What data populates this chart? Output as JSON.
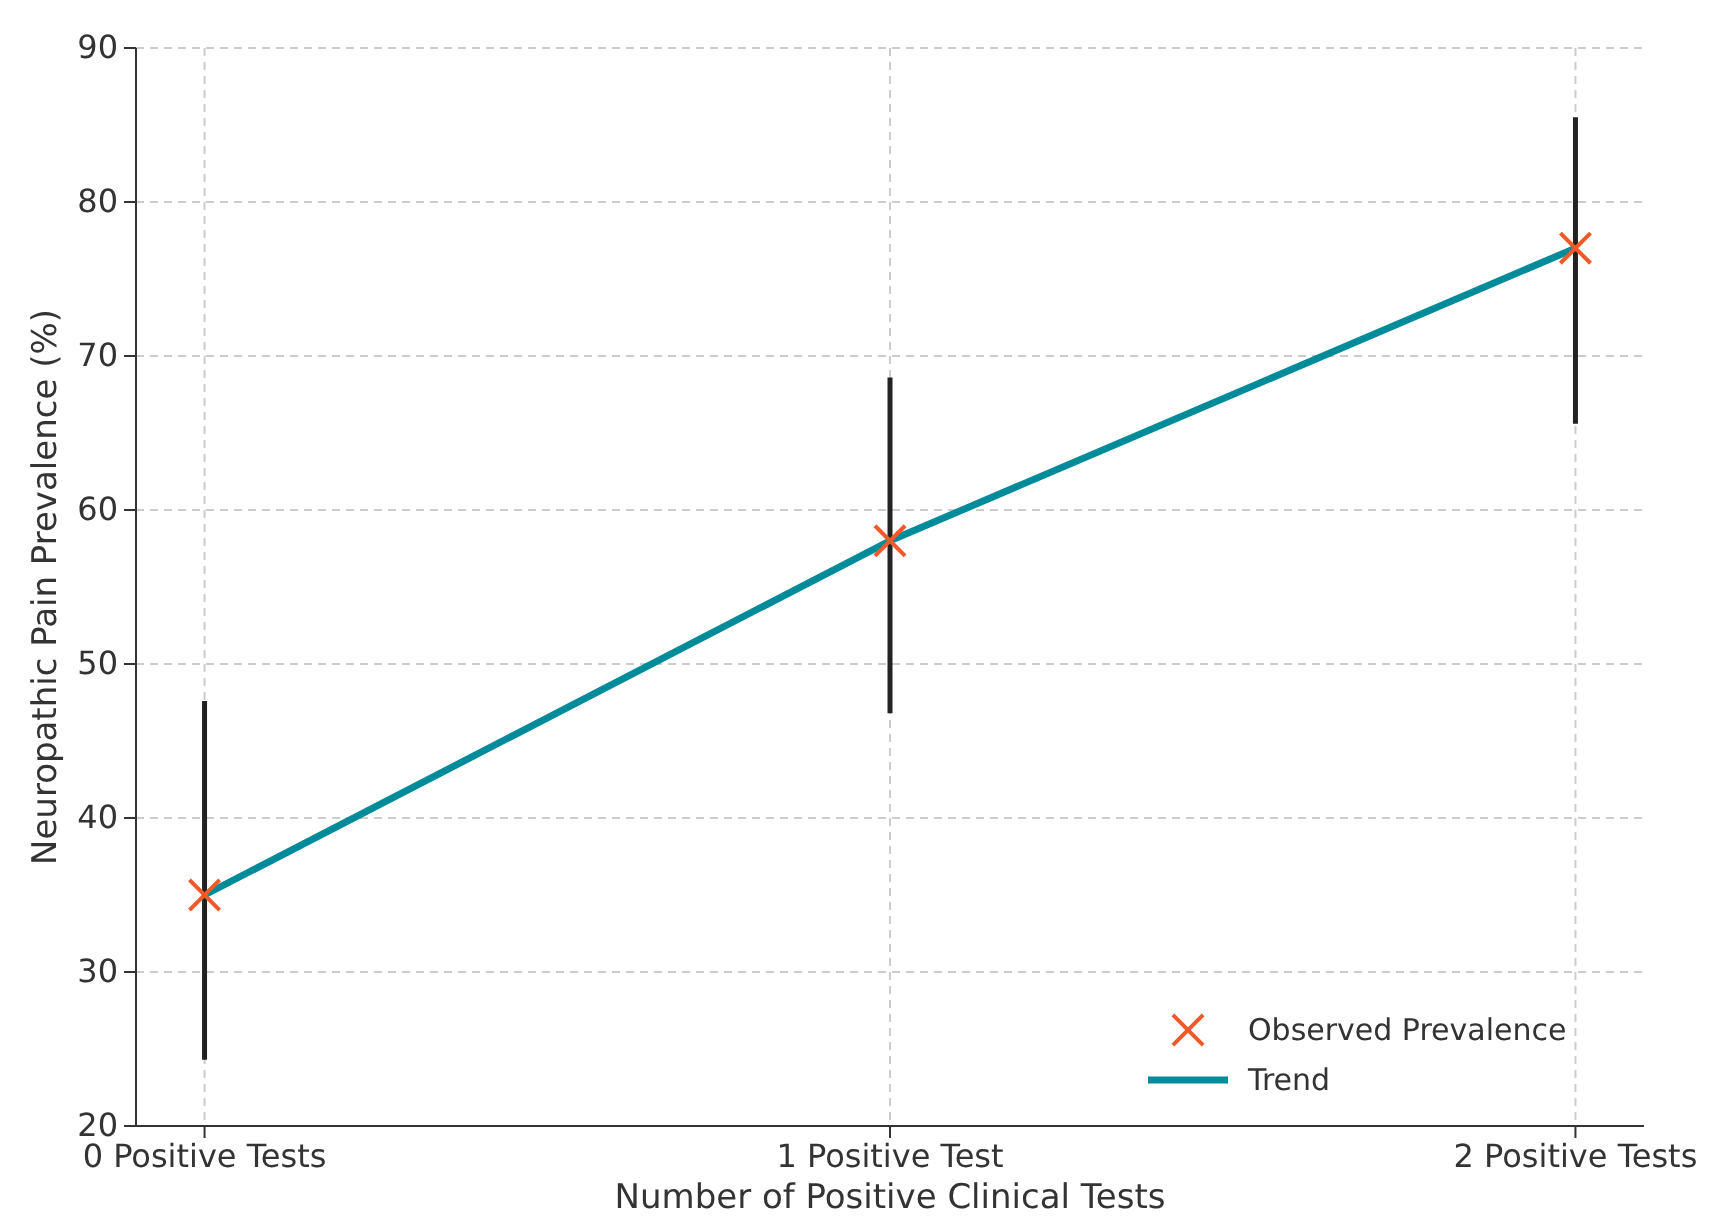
{
  "chart_data": {
    "type": "scatter",
    "xlabel": "Number of Positive Clinical Tests",
    "ylabel": "Neuropathic Pain Prevalence (%)",
    "categories": [
      "0 Positive Tests",
      "1 Positive Test",
      "2 Positive Tests"
    ],
    "series": [
      {
        "name": "Observed Prevalence",
        "color": "#f05a28",
        "marker": "cross",
        "values": [
          35,
          58,
          77
        ],
        "errors": [
          [
            24.3,
            47.6
          ],
          [
            46.8,
            68.6
          ],
          [
            65.6,
            85.5
          ]
        ]
      },
      {
        "name": "Trend",
        "type": "line",
        "color": "#008b9a",
        "marker": "none",
        "line_style": "solid",
        "values": [
          35,
          58,
          77
        ]
      }
    ],
    "ylim": [
      20,
      90
    ],
    "yticks": [
      20,
      30,
      40,
      50,
      60,
      70,
      80,
      90
    ],
    "grid": true,
    "legend": "bottom right"
  }
}
